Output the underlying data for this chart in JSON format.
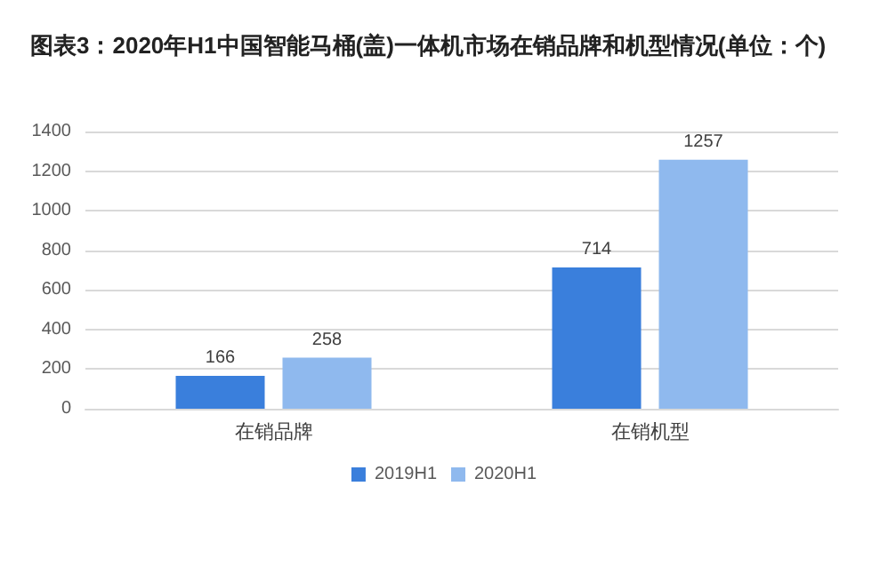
{
  "chart_data": {
    "type": "bar",
    "title": "图表3：2020年H1中国智能马桶(盖)一体机市场在销品牌和机型情况(单位：个)",
    "categories": [
      "在销品牌",
      "在销机型"
    ],
    "series": [
      {
        "name": "2019H1",
        "color": "#3a7fdc",
        "values": [
          166,
          714
        ]
      },
      {
        "name": "2020H1",
        "color": "#8fb9ee",
        "values": [
          258,
          1257
        ]
      }
    ],
    "ylim": [
      0,
      1400
    ],
    "yticks": [
      0,
      200,
      400,
      600,
      800,
      1000,
      1200,
      1400
    ],
    "grid": "y",
    "legend": "bottom",
    "data_labels": true
  }
}
